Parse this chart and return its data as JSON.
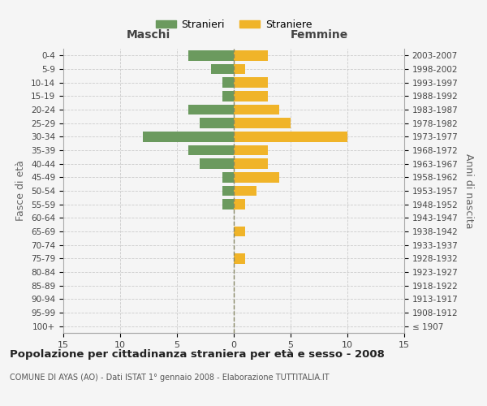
{
  "age_groups": [
    "100+",
    "95-99",
    "90-94",
    "85-89",
    "80-84",
    "75-79",
    "70-74",
    "65-69",
    "60-64",
    "55-59",
    "50-54",
    "45-49",
    "40-44",
    "35-39",
    "30-34",
    "25-29",
    "20-24",
    "15-19",
    "10-14",
    "5-9",
    "0-4"
  ],
  "birth_years": [
    "≤ 1907",
    "1908-1912",
    "1913-1917",
    "1918-1922",
    "1923-1927",
    "1928-1932",
    "1933-1937",
    "1938-1942",
    "1943-1947",
    "1948-1952",
    "1953-1957",
    "1958-1962",
    "1963-1967",
    "1968-1972",
    "1973-1977",
    "1978-1982",
    "1983-1987",
    "1988-1992",
    "1993-1997",
    "1998-2002",
    "2003-2007"
  ],
  "males": [
    0,
    0,
    0,
    0,
    0,
    0,
    0,
    0,
    0,
    1,
    1,
    1,
    3,
    4,
    8,
    3,
    4,
    1,
    1,
    2,
    4
  ],
  "females": [
    0,
    0,
    0,
    0,
    0,
    1,
    0,
    1,
    0,
    1,
    2,
    4,
    3,
    3,
    10,
    5,
    4,
    3,
    3,
    1,
    3
  ],
  "male_color": "#6b9a5e",
  "female_color": "#f0b429",
  "background_color": "#f5f5f5",
  "grid_color": "#cccccc",
  "title": "Popolazione per cittadinanza straniera per età e sesso - 2008",
  "subtitle1": "COMUNE DI AYAS (AO) - Dati ISTAT 1° gennaio 2008 - Elaborazione TUTTITALIA.IT",
  "ylabel_left": "Fasce di età",
  "ylabel_right": "Anni di nascita",
  "xlabel_left": "Maschi",
  "xlabel_right": "Femmine",
  "legend_male": "Stranieri",
  "legend_female": "Straniere",
  "xlim": 15,
  "figsize": [
    6.0,
    5.0
  ],
  "dpi": 100
}
